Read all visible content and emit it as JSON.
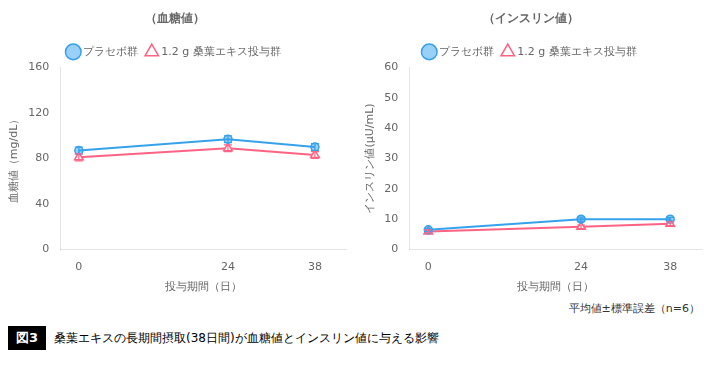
{
  "chart_data": [
    {
      "type": "line",
      "title": "（血糖値）",
      "xlabel": "投与期間（日）",
      "ylabel": "血糖値（mg/dL）",
      "x": [
        0,
        24,
        38
      ],
      "series": [
        {
          "name": "プラセボ群",
          "marker": "circle",
          "values": [
            87,
            97,
            90
          ],
          "errors": [
            3,
            3,
            3
          ]
        },
        {
          "name": "1.2 g 桑葉エキス投与群",
          "marker": "open_triangle",
          "values": [
            81,
            89,
            83
          ],
          "errors": [
            3,
            3,
            3
          ]
        }
      ],
      "xlim": [
        -3,
        43
      ],
      "xticks": [
        0,
        24,
        38
      ],
      "ylim": [
        0,
        160
      ],
      "yticks": [
        0,
        40,
        80,
        120,
        160
      ],
      "grid": false,
      "legend": "top"
    },
    {
      "type": "line",
      "title": "（インスリン値）",
      "xlabel": "投与期間（日）",
      "ylabel": "インスリン値(μU/mL)",
      "x": [
        0,
        24,
        38
      ],
      "series": [
        {
          "name": "プラセボ群",
          "marker": "circle",
          "values": [
            6.5,
            10.0,
            10.0
          ],
          "errors": [
            0.5,
            0.7,
            0.6
          ]
        },
        {
          "name": "1.2 g 桑葉エキス投与群",
          "marker": "open_triangle",
          "values": [
            6.0,
            7.5,
            8.5
          ],
          "errors": [
            0.5,
            0.6,
            0.6
          ]
        }
      ],
      "xlim": [
        -3,
        43
      ],
      "xticks": [
        0,
        24,
        38
      ],
      "ylim": [
        0,
        60
      ],
      "yticks": [
        0,
        10,
        20,
        30,
        40,
        50,
        60
      ],
      "grid": false,
      "legend": "top"
    }
  ],
  "note": "平均値±標準誤差（n=6）",
  "caption_label": "図3",
  "caption": "桑葉エキスの長期間摂取(38日間)が血糖値とインスリン値に与える影響"
}
